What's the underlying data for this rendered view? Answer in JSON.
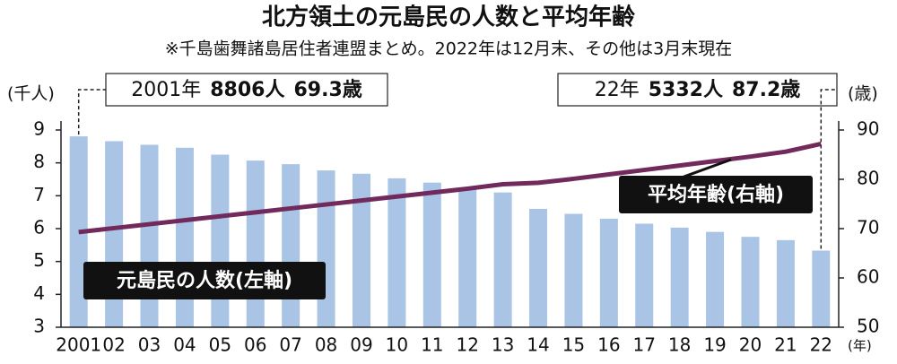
{
  "chart_data": {
    "type": "bar-line",
    "title": "北方領土の元島民の人数と平均年齢",
    "subtitle": "※千島歯舞諸島居住者連盟まとめ。2022年は12月末、その他は3月末現在",
    "ylabel": "(千人)",
    "y2label": "(歳)",
    "xlabel": "(年)",
    "categories": [
      "2001",
      "02",
      "03",
      "04",
      "05",
      "06",
      "07",
      "08",
      "09",
      "10",
      "11",
      "12",
      "13",
      "14",
      "15",
      "16",
      "17",
      "18",
      "19",
      "20",
      "21",
      "22"
    ],
    "series": [
      {
        "name": "元島民の人数(左軸)",
        "type": "bar",
        "color": "#a9c4e4",
        "values": [
          8.806,
          8.66,
          8.55,
          8.46,
          8.25,
          8.07,
          7.96,
          7.77,
          7.67,
          7.53,
          7.4,
          7.2,
          7.1,
          6.6,
          6.45,
          6.3,
          6.15,
          6.03,
          5.9,
          5.75,
          5.65,
          5.332
        ]
      },
      {
        "name": "平均年齢(右軸)",
        "type": "line",
        "axis": "y2",
        "color": "#722a5c",
        "values": [
          69.3,
          70.1,
          70.9,
          71.7,
          72.5,
          73.3,
          74.1,
          74.9,
          75.7,
          76.5,
          77.3,
          78.1,
          79.0,
          79.3,
          80.1,
          81.0,
          81.9,
          82.8,
          83.7,
          84.6,
          85.6,
          87.2
        ]
      }
    ],
    "ylim": [
      3,
      9
    ],
    "yticks": [
      3,
      4,
      5,
      6,
      7,
      8,
      9
    ],
    "y2lim": [
      50,
      90
    ],
    "y2ticks": [
      50,
      60,
      70,
      80,
      90
    ],
    "annotations": [
      {
        "year": "2001年",
        "count": "8806人",
        "age": "69.3歳"
      },
      {
        "year": "22年",
        "count": "5332人",
        "age": "87.2歳"
      }
    ]
  }
}
